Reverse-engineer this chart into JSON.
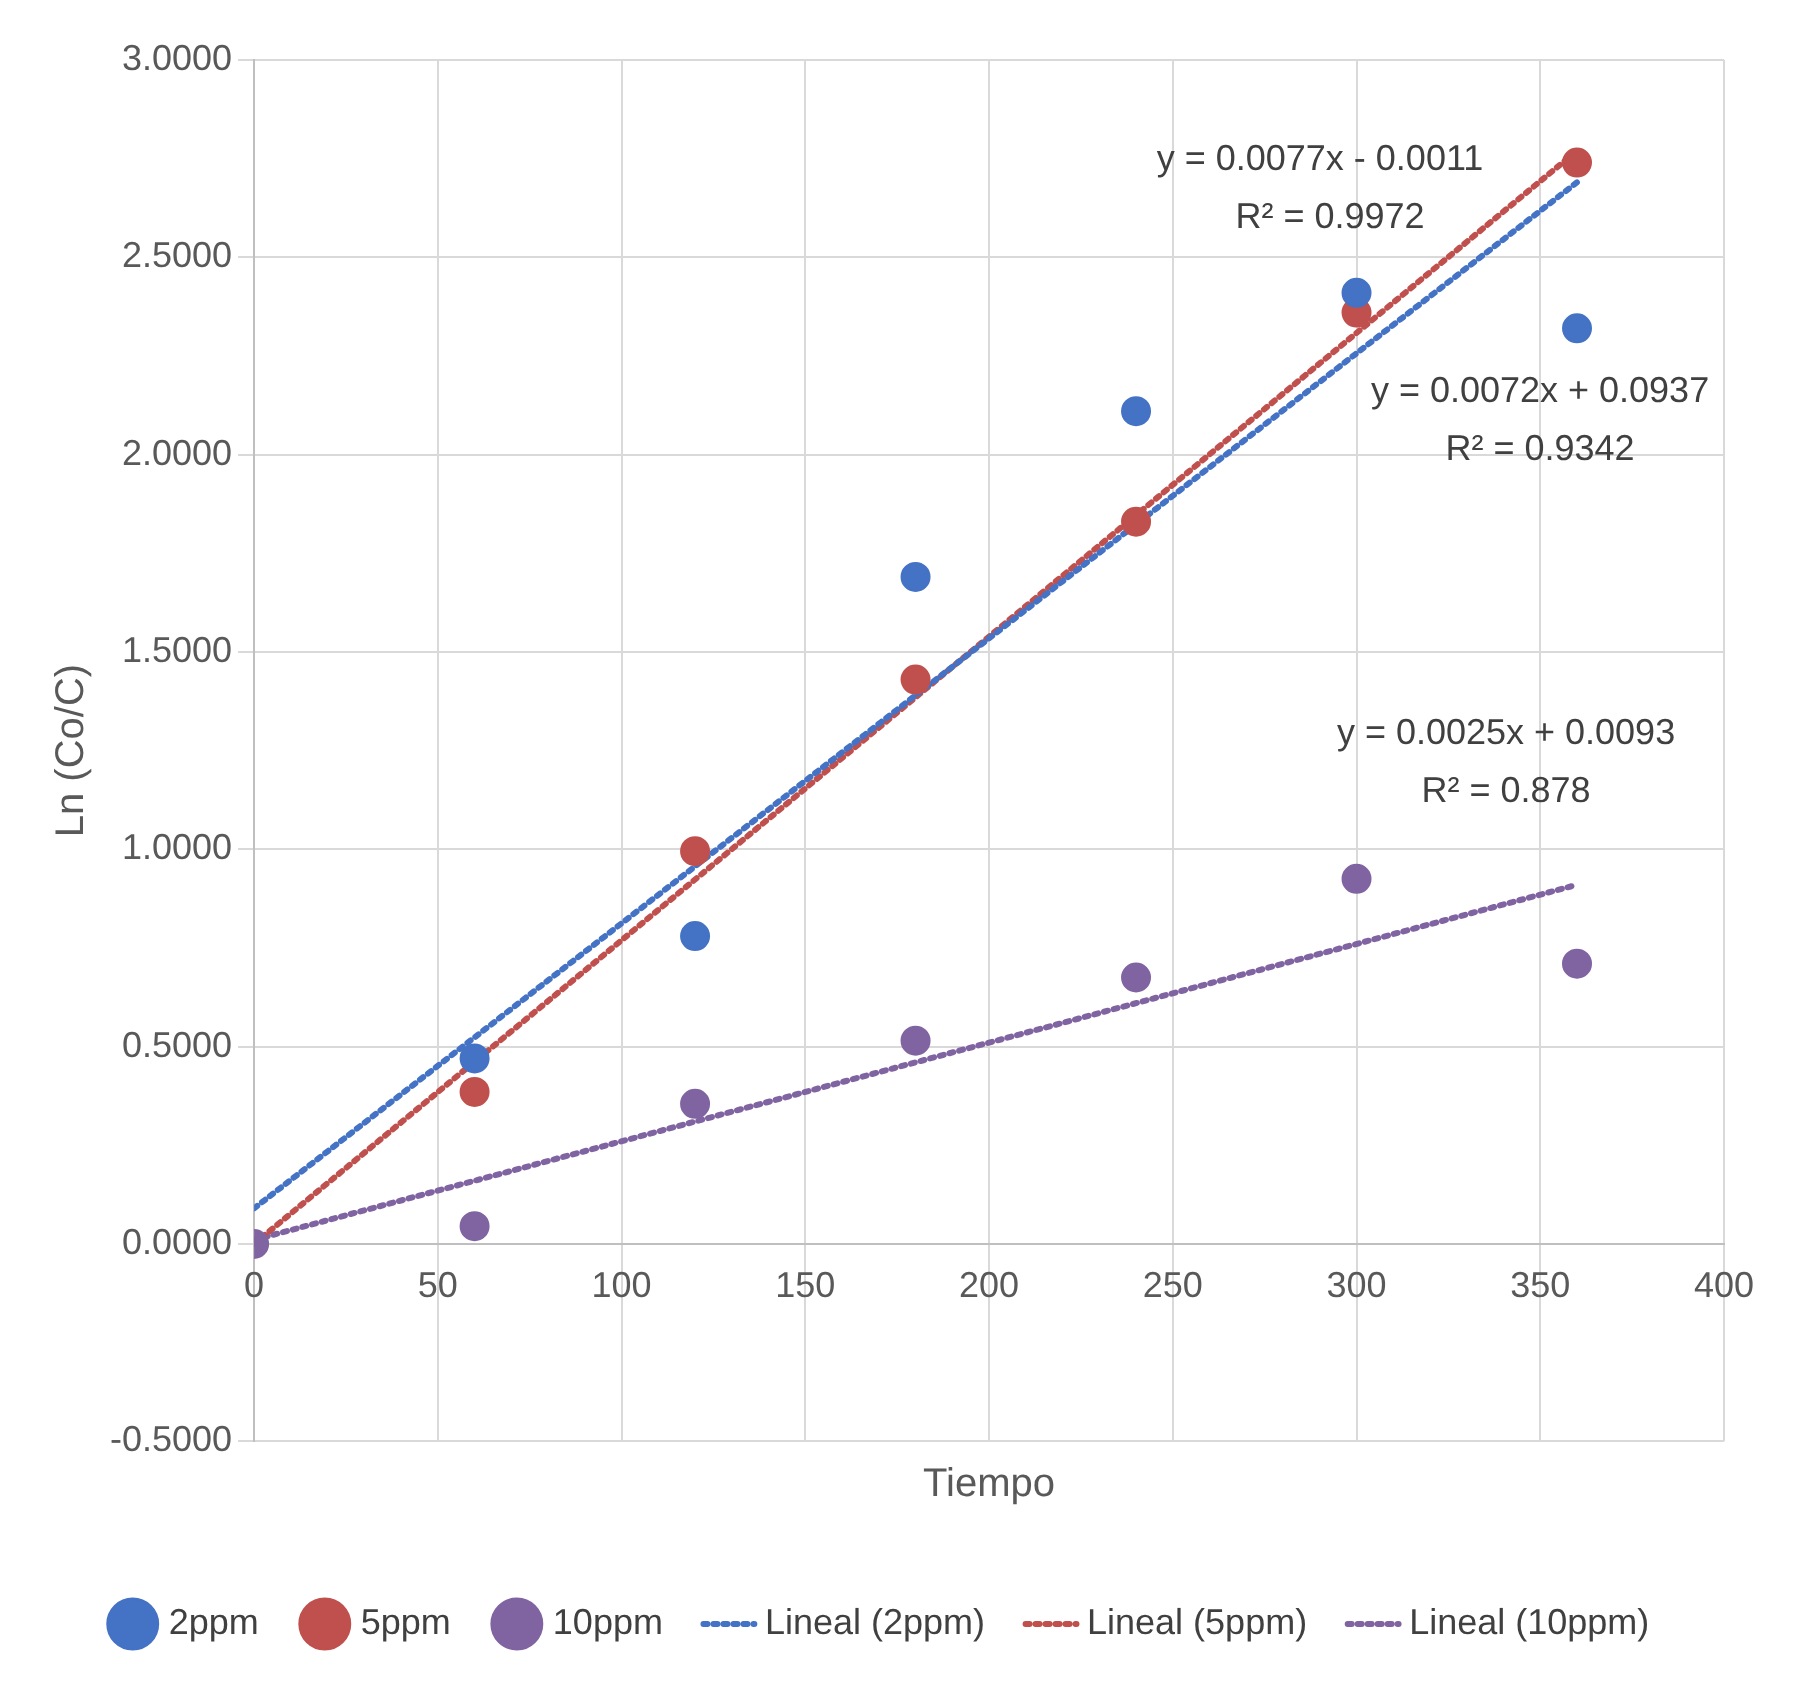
{
  "chart_data": {
    "type": "scatter",
    "xlabel": "Tiempo",
    "ylabel": "Ln (Co/C)",
    "x": [
      0,
      60,
      120,
      180,
      240,
      300,
      360
    ],
    "series": [
      {
        "name": "2ppm",
        "type": "scatter",
        "color": "#4472c4",
        "marker": "circle",
        "values": [
          null,
          0.47,
          0.78,
          1.69,
          2.11,
          2.41,
          2.32
        ]
      },
      {
        "name": "5ppm",
        "type": "scatter",
        "color": "#c0504d",
        "marker": "circle",
        "values": [
          null,
          0.385,
          0.995,
          1.43,
          1.83,
          2.36,
          2.74
        ]
      },
      {
        "name": "10ppm",
        "type": "scatter",
        "color": "#8064a2",
        "marker": "circle",
        "values": [
          0,
          0.045,
          0.355,
          0.515,
          0.675,
          0.925,
          0.71
        ]
      },
      {
        "name": "Lineal (2ppm)",
        "type": "line",
        "color": "#4472c4",
        "line_style": "dotted",
        "marker": "none",
        "values": [
          0.09,
          null,
          null,
          null,
          null,
          null,
          2.69
        ]
      },
      {
        "name": "Lineal (5ppm)",
        "type": "line",
        "color": "#c0504d",
        "line_style": "dotted",
        "marker": "none",
        "values": [
          0,
          null,
          null,
          null,
          null,
          null,
          2.77
        ]
      },
      {
        "name": "Lineal (10ppm)",
        "type": "line",
        "color": "#8064a2",
        "line_style": "dotted",
        "marker": "none",
        "values": [
          0.01,
          null,
          null,
          null,
          null,
          null,
          0.91
        ]
      }
    ],
    "xlim": [
      0,
      400
    ],
    "xticks": [
      0,
      50,
      100,
      150,
      200,
      250,
      300,
      350,
      400
    ],
    "ylim": [
      -0.5,
      3
    ],
    "yticks": [
      {
        "value": -0.5,
        "label": "-0.5000"
      },
      {
        "value": 0,
        "label": "0.0000"
      },
      {
        "value": 0.5,
        "label": "0.5000"
      },
      {
        "value": 1,
        "label": "1.0000"
      },
      {
        "value": 1.5,
        "label": "1.5000"
      },
      {
        "value": 2,
        "label": "2.0000"
      },
      {
        "value": 2.5,
        "label": "2.5000"
      },
      {
        "value": 3,
        "label": "3.0000"
      }
    ],
    "grid": true,
    "legend": "bottom",
    "annotations": [
      "y = 0.0077x - 0.0011",
      "R² = 0.9972",
      "y = 0.0072x + 0.0937",
      "R² = 0.9342",
      "y = 0.0025x + 0.0093",
      "R² = 0.878"
    ]
  }
}
